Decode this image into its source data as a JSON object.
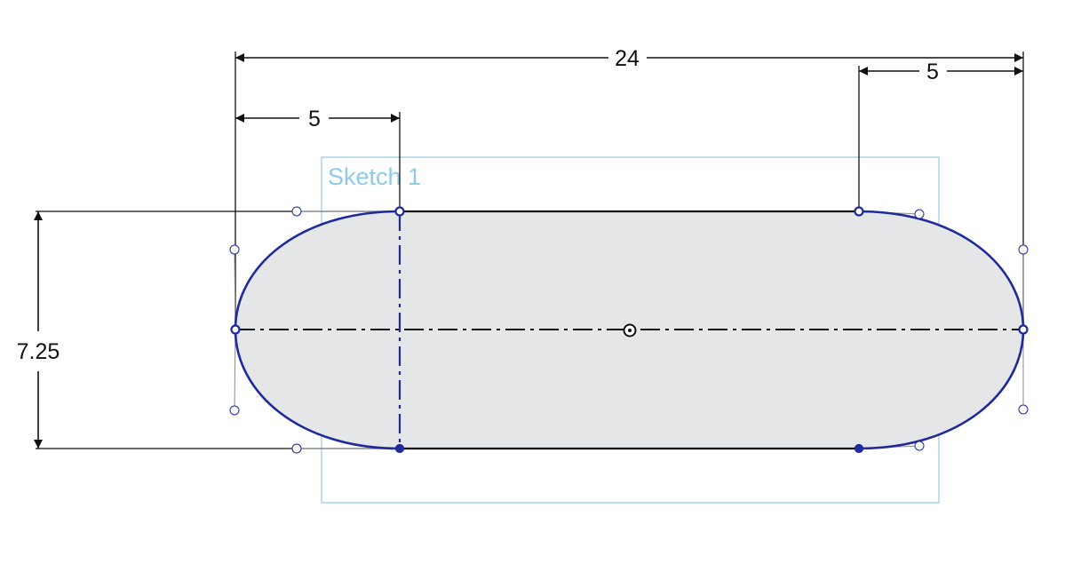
{
  "sketch": {
    "label": "Sketch 1"
  },
  "dimensions": {
    "overall_length": "24",
    "left_spline_length": "5",
    "right_spline_length": "5",
    "height": "7.25"
  },
  "colors": {
    "profile_curve": "#1f2a9c",
    "profile_fill": "#e4e6e8",
    "dimension_line": "#111111",
    "sketch_frame": "#9ed0e6",
    "sketch_label": "#8fcbe6",
    "control_handle": "#8a8a8a",
    "construction_line": "#111111"
  }
}
